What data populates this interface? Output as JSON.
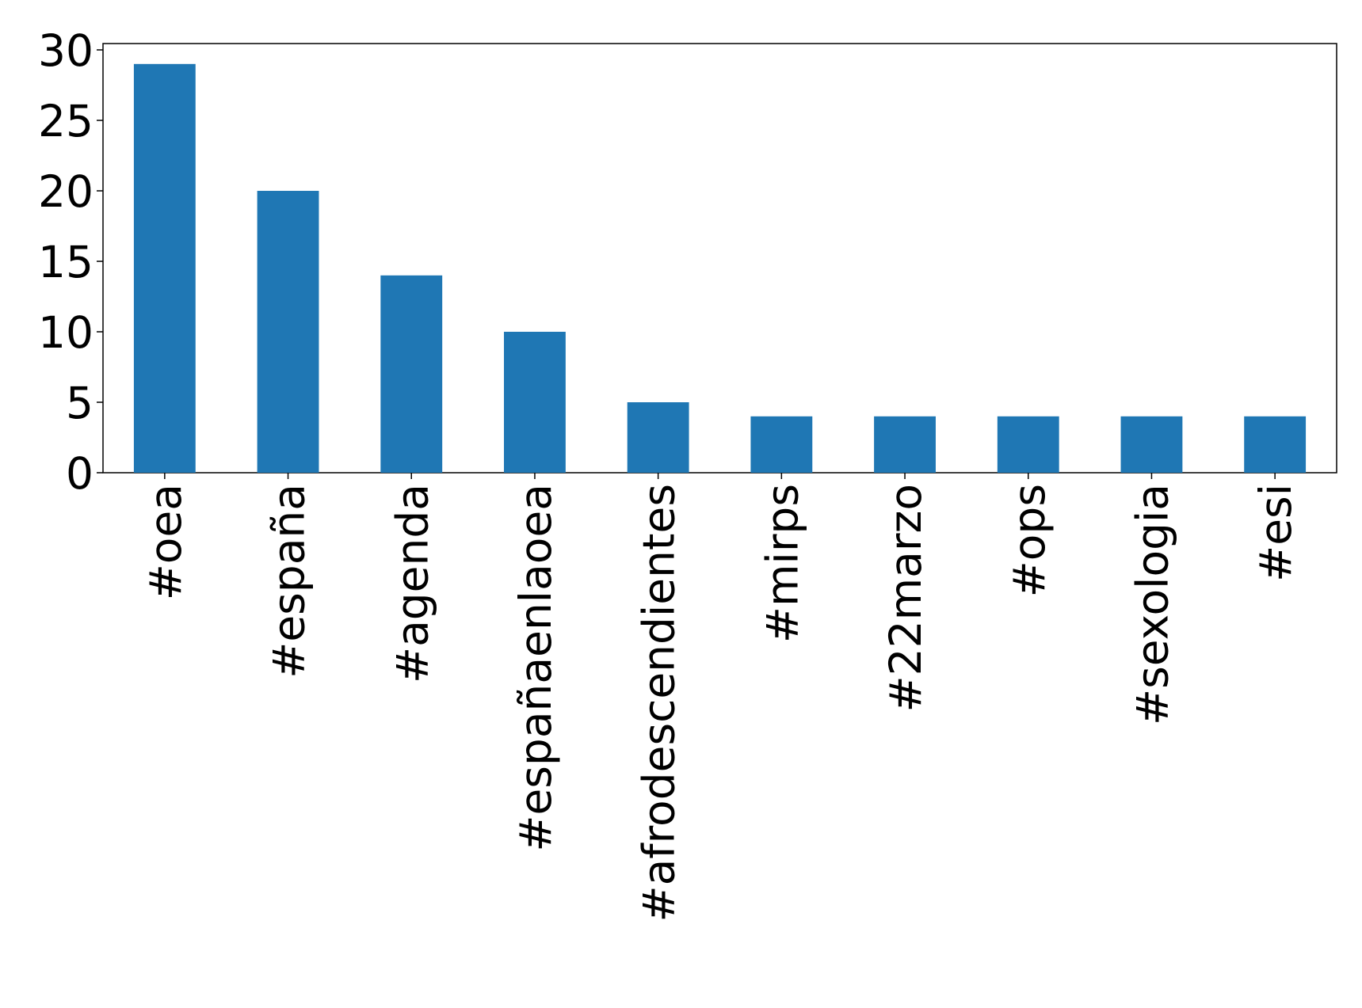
{
  "chart_data": {
    "type": "bar",
    "categories": [
      "#oea",
      "#españa",
      "#agenda",
      "#españaenlaoea",
      "#afrodescendientes",
      "#mirps",
      "#22marzo",
      "#ops",
      "#sexologia",
      "#esi"
    ],
    "values": [
      29,
      20,
      14,
      10,
      5,
      4,
      4,
      4,
      4,
      4
    ],
    "color": "#1f77b4",
    "ylim": [
      0,
      30.45
    ],
    "yticks": [
      0,
      5,
      10,
      15,
      20,
      25,
      30
    ],
    "grid": false
  }
}
